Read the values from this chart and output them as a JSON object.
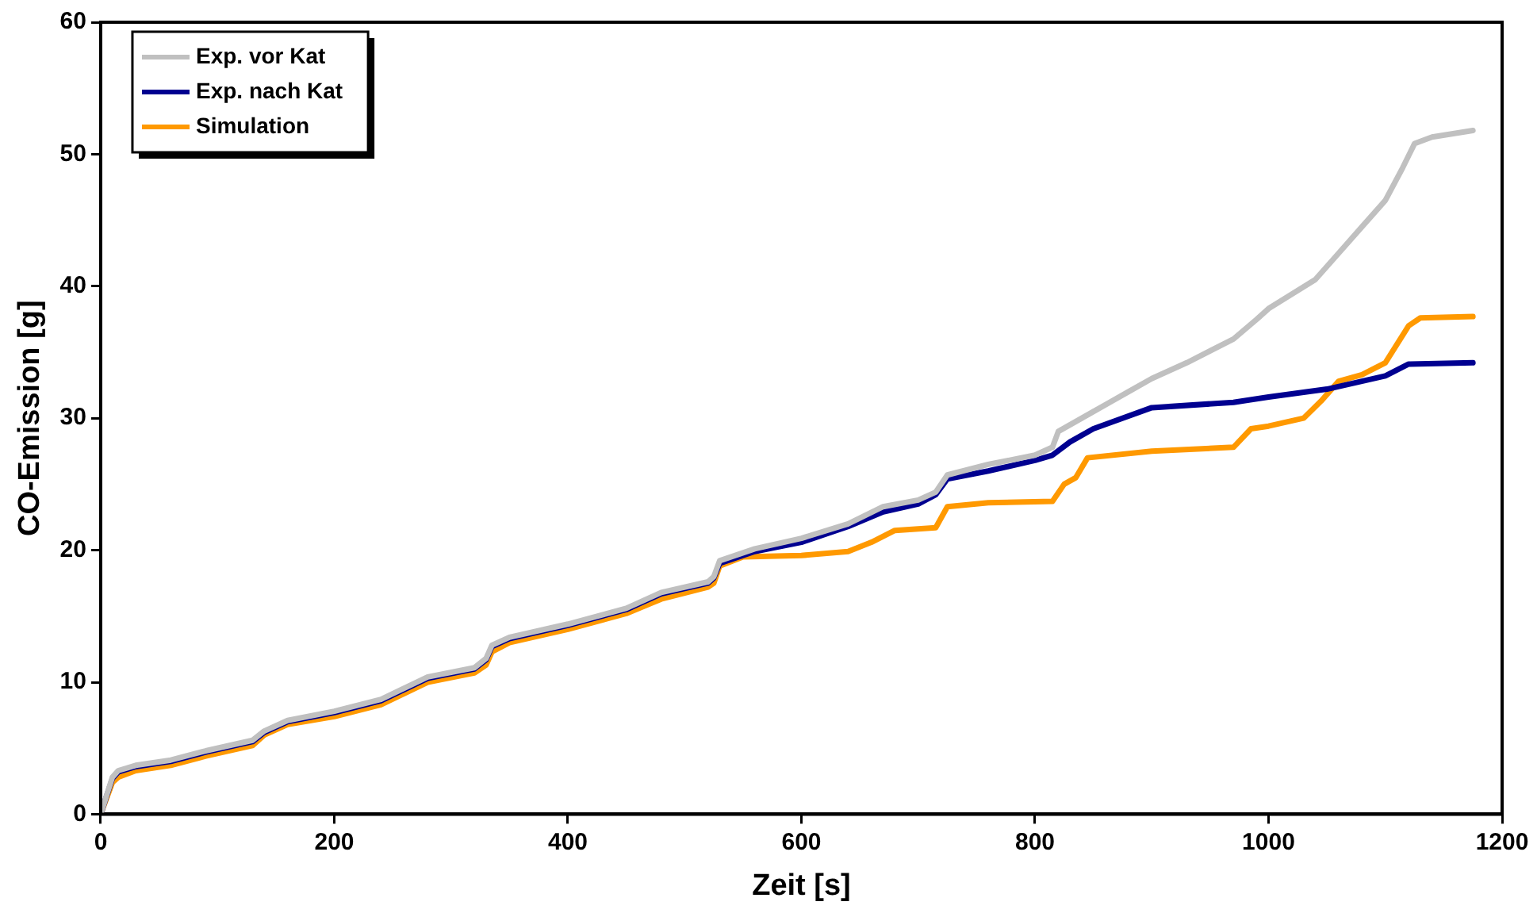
{
  "chart_data": {
    "type": "line",
    "xlabel": "Zeit [s]",
    "ylabel": "CO-Emission [g]",
    "xlim": [
      0,
      1200
    ],
    "xticks": [
      0,
      200,
      400,
      600,
      800,
      1000,
      1200
    ],
    "ylim": [
      0,
      60
    ],
    "yticks": [
      0,
      10,
      20,
      30,
      40,
      50,
      60
    ],
    "grid": false,
    "legend": "top left",
    "marker": "none",
    "line_style": "solid",
    "series": [
      {
        "name": "Exp. vor Kat",
        "color": "#c0c0c0",
        "x": [
          0,
          10,
          15,
          30,
          60,
          90,
          130,
          140,
          160,
          200,
          240,
          280,
          320,
          330,
          335,
          350,
          400,
          450,
          480,
          520,
          525,
          530,
          560,
          600,
          640,
          670,
          700,
          715,
          725,
          760,
          800,
          815,
          820,
          850,
          880,
          900,
          930,
          970,
          990,
          1000,
          1040,
          1060,
          1080,
          1100,
          1115,
          1125,
          1140,
          1175
        ],
        "values": [
          0,
          2.8,
          3.3,
          3.7,
          4.1,
          4.8,
          5.6,
          6.3,
          7.1,
          7.8,
          8.7,
          10.4,
          11.1,
          11.8,
          12.8,
          13.4,
          14.4,
          15.6,
          16.8,
          17.6,
          18.0,
          19.2,
          20.1,
          20.9,
          22.0,
          23.3,
          23.8,
          24.4,
          25.7,
          26.5,
          27.2,
          27.8,
          29.0,
          30.5,
          32.0,
          33.0,
          34.2,
          36.0,
          37.5,
          38.3,
          40.5,
          42.5,
          44.5,
          46.5,
          49.0,
          50.8,
          51.3,
          51.8
        ]
      },
      {
        "name": "Exp. nach Kat",
        "color": "#000090",
        "x": [
          0,
          10,
          15,
          30,
          60,
          90,
          130,
          140,
          160,
          200,
          240,
          280,
          320,
          330,
          335,
          350,
          400,
          450,
          480,
          520,
          525,
          530,
          560,
          600,
          640,
          670,
          700,
          715,
          725,
          760,
          800,
          815,
          830,
          850,
          900,
          970,
          1000,
          1050,
          1100,
          1120,
          1175
        ],
        "values": [
          0,
          2.7,
          3.2,
          3.6,
          4.0,
          4.7,
          5.5,
          6.2,
          7.0,
          7.7,
          8.6,
          10.3,
          11.0,
          11.7,
          12.7,
          13.3,
          14.3,
          15.5,
          16.7,
          17.5,
          17.9,
          19.0,
          19.9,
          20.6,
          21.8,
          22.9,
          23.5,
          24.2,
          25.4,
          26.0,
          26.8,
          27.2,
          28.2,
          29.2,
          30.8,
          31.2,
          31.6,
          32.2,
          33.2,
          34.1,
          34.2
        ]
      },
      {
        "name": "Simulation",
        "color": "#ff9900",
        "x": [
          0,
          10,
          15,
          30,
          60,
          90,
          130,
          140,
          160,
          200,
          240,
          280,
          320,
          330,
          335,
          350,
          400,
          450,
          480,
          520,
          525,
          530,
          550,
          600,
          640,
          660,
          680,
          715,
          725,
          760,
          815,
          825,
          835,
          845,
          900,
          970,
          985,
          1000,
          1030,
          1045,
          1060,
          1080,
          1100,
          1120,
          1130,
          1175
        ],
        "values": [
          0,
          2.4,
          2.8,
          3.3,
          3.7,
          4.4,
          5.2,
          6.0,
          6.8,
          7.4,
          8.3,
          10.0,
          10.7,
          11.3,
          12.3,
          13.0,
          14.0,
          15.2,
          16.3,
          17.2,
          17.5,
          18.8,
          19.5,
          19.6,
          19.9,
          20.6,
          21.5,
          21.7,
          23.3,
          23.6,
          23.7,
          25.0,
          25.5,
          27.0,
          27.5,
          27.8,
          29.2,
          29.4,
          30.0,
          31.3,
          32.8,
          33.3,
          34.2,
          37.0,
          37.6,
          37.7
        ]
      }
    ]
  }
}
